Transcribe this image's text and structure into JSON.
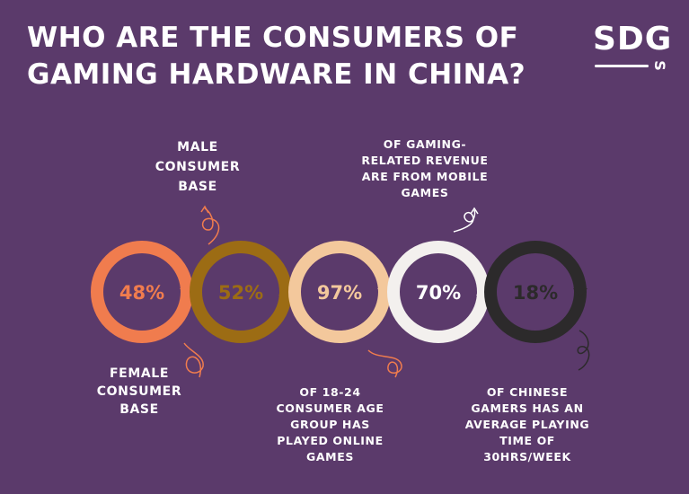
{
  "title": "WHO ARE THE CONSUMERS OF GAMING HARDWARE IN CHINA?",
  "logo": {
    "text": "SDG",
    "small": "S"
  },
  "stats": [
    {
      "value": "48%",
      "caption": "FEMALE CONSUMER BASE",
      "ring_color": "#f07c4e",
      "text_color": "#f07c4e"
    },
    {
      "value": "52%",
      "caption": "MALE CONSUMER BASE",
      "ring_color": "#9c6c14",
      "text_color": "#9c6c14"
    },
    {
      "value": "97%",
      "caption": "OF 18-24 CONSUMER AGE GROUP HAS PLAYED ONLINE GAMES",
      "ring_color": "#f3c89c",
      "text_color": "#f3c89c"
    },
    {
      "value": "70%",
      "caption": "OF GAMING-RELATED REVENUE ARE FROM MOBILE GAMES",
      "ring_color": "#f3f0ee",
      "text_color": "#ffffff"
    },
    {
      "value": "18%",
      "caption": "OF CHINESE GAMERS HAS AN AVERAGE PLAYING TIME OF 30HRS/WEEK",
      "ring_color": "#2c2a2b",
      "text_color": "#2c2a2b"
    }
  ],
  "colors": {
    "background": "#5b3a6b",
    "inner": "#5b3a6b"
  }
}
